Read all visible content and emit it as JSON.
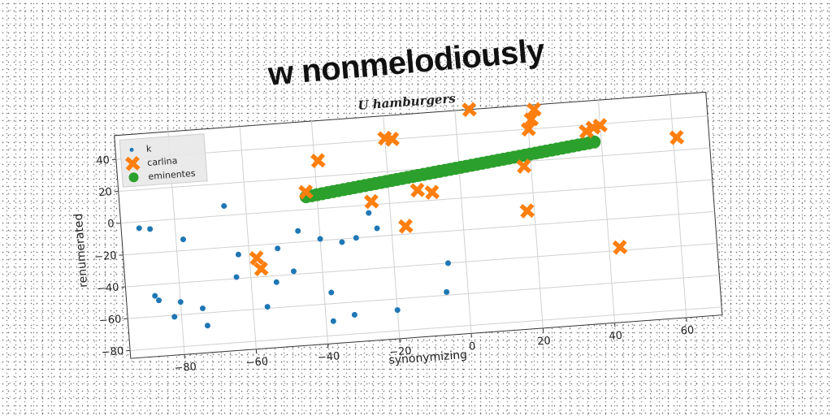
{
  "title": "w nonmelodiously",
  "chart_data": {
    "type": "scatter",
    "subtitle": "U hamburgers",
    "xlabel": "synonymizing",
    "ylabel": "renumerated",
    "xlim": [
      -95,
      70
    ],
    "ylim": [
      -85,
      55
    ],
    "xticks": [
      -80,
      -60,
      -40,
      -20,
      0,
      20,
      40,
      60
    ],
    "yticks": [
      -80,
      -60,
      -40,
      -20,
      0,
      20,
      40
    ],
    "xtick_labels": [
      "−80",
      "−60",
      "−40",
      "−20",
      "0",
      "20",
      "40",
      "60"
    ],
    "ytick_labels": [
      "−80",
      "−60",
      "−40",
      "−20",
      "0",
      "20",
      "40"
    ],
    "grid": true,
    "legend_position": "top-left",
    "series": [
      {
        "name": "k",
        "marker": "circle-small",
        "color": "#1f77b4",
        "points": [
          [
            -90,
            -4
          ],
          [
            -87,
            -5
          ],
          [
            -87,
            -47
          ],
          [
            -86,
            -50
          ],
          [
            -82,
            -61
          ],
          [
            -80,
            -52
          ],
          [
            -78,
            -13
          ],
          [
            -74,
            -57
          ],
          [
            -73,
            -68
          ],
          [
            -66,
            6
          ],
          [
            -64,
            -39
          ],
          [
            -63,
            -25
          ],
          [
            -56,
            -59
          ],
          [
            -53,
            -44
          ],
          [
            -52,
            -23
          ],
          [
            -48,
            -38
          ],
          [
            -46,
            -13
          ],
          [
            -40,
            -19
          ],
          [
            -38,
            -53
          ],
          [
            -38,
            -71
          ],
          [
            -34,
            -22
          ],
          [
            -32,
            -68
          ],
          [
            -30,
            -20
          ],
          [
            -26,
            -5
          ],
          [
            -24,
            -15
          ],
          [
            -20,
            -67
          ],
          [
            -5,
            -40
          ],
          [
            -6,
            -58
          ]
        ]
      },
      {
        "name": "carlina",
        "marker": "x-large",
        "color": "#ff7f0e",
        "points": [
          [
            -58,
            -28
          ],
          [
            -57,
            -35
          ],
          [
            -43,
            11
          ],
          [
            -39,
            30
          ],
          [
            -25,
            2
          ],
          [
            -20,
            41
          ],
          [
            -18,
            40
          ],
          [
            -16,
            -15
          ],
          [
            -12,
            7
          ],
          [
            -8,
            5
          ],
          [
            4,
            55
          ],
          [
            18,
            17
          ],
          [
            18,
            -11
          ],
          [
            20,
            40
          ],
          [
            21,
            46
          ],
          [
            22,
            52
          ],
          [
            36,
            36
          ],
          [
            38,
            38
          ],
          [
            40,
            39
          ],
          [
            43,
            -38
          ],
          [
            61,
            28
          ]
        ]
      },
      {
        "name": "eminentes",
        "marker": "circle-large",
        "color": "#2ca02c",
        "line_x": [
          -43,
          38
        ],
        "line_y": [
          8,
          29
        ],
        "point_count": 55
      }
    ]
  }
}
